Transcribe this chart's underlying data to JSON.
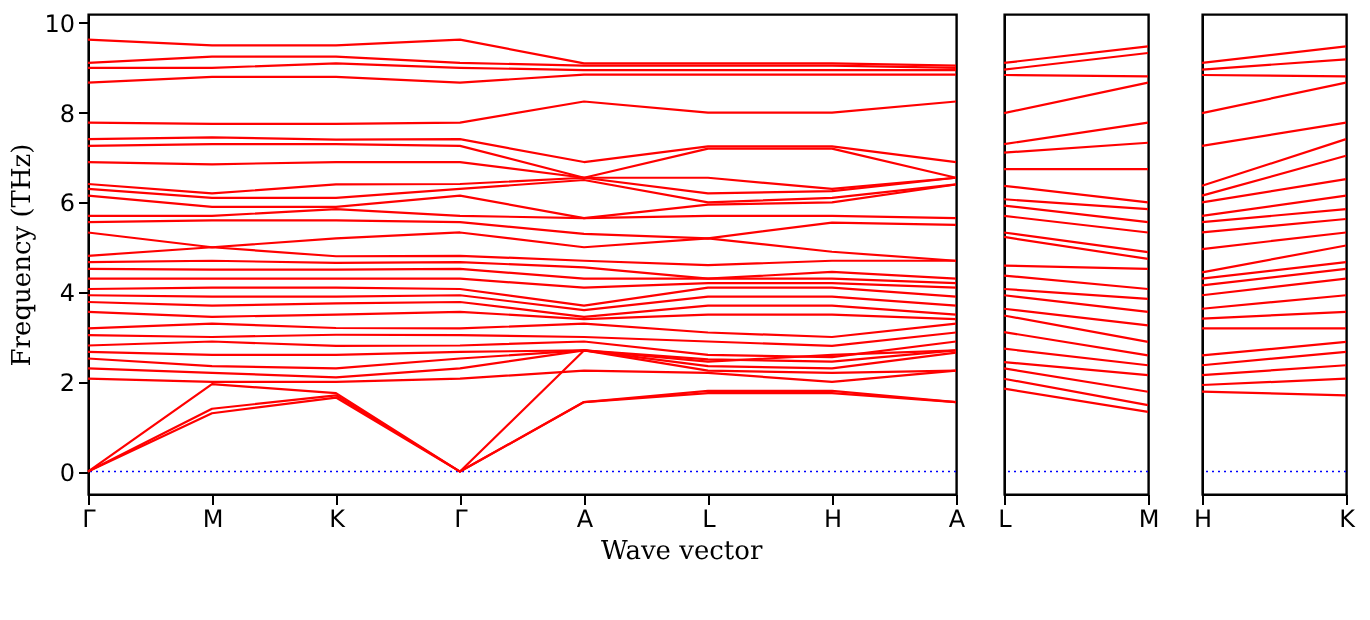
{
  "chart_data": [
    {
      "type": "line",
      "ylabel": "Frequency (THz)",
      "xlabel": "Wave vector",
      "categories": [
        "Γ",
        "M",
        "K",
        "Γ",
        "A",
        "L",
        "H",
        "A"
      ],
      "ylim": [
        -0.5,
        10.2
      ],
      "yticks": [
        0,
        2,
        4,
        6,
        8,
        10
      ],
      "ref_lines": [
        {
          "axis": "y",
          "value": 0,
          "color": "#0000ff",
          "line_style": "dotted"
        }
      ],
      "series": [
        {
          "color": "#ff0000",
          "values": [
            0,
            1.3,
            1.65,
            0,
            1.55,
            1.75,
            1.75,
            1.55
          ]
        },
        {
          "color": "#ff0000",
          "values": [
            0,
            1.4,
            1.7,
            0,
            1.55,
            1.8,
            1.8,
            1.55
          ]
        },
        {
          "color": "#ff0000",
          "values": [
            0,
            1.95,
            1.75,
            0,
            2.7,
            2.45,
            2.6,
            2.7
          ]
        },
        {
          "color": "#ff0000",
          "values": [
            9.63,
            9.5,
            9.5,
            9.63,
            9.1,
            9.1,
            9.1,
            9.05
          ]
        },
        {
          "color": "#ff0000",
          "values": [
            9.11,
            9.25,
            9.25,
            9.11,
            9.05,
            9.05,
            9.05,
            9.0
          ]
        },
        {
          "color": "#ff0000",
          "values": [
            9.0,
            9.0,
            9.1,
            9.0,
            8.95,
            8.95,
            8.95,
            8.95
          ]
        },
        {
          "color": "#ff0000",
          "values": [
            8.67,
            8.8,
            8.8,
            8.67,
            8.85,
            8.85,
            8.85,
            8.85
          ]
        },
        {
          "color": "#ff0000",
          "values": [
            7.78,
            7.75,
            7.75,
            7.78,
            8.25,
            8.0,
            8.0,
            8.25
          ]
        },
        {
          "color": "#ff0000",
          "values": [
            7.41,
            7.45,
            7.4,
            7.41,
            6.9,
            7.25,
            7.25,
            6.9
          ]
        },
        {
          "color": "#ff0000",
          "values": [
            7.26,
            7.3,
            7.3,
            7.26,
            6.55,
            7.2,
            7.2,
            6.55
          ]
        },
        {
          "color": "#ff0000",
          "values": [
            6.9,
            6.85,
            6.9,
            6.9,
            6.55,
            6.55,
            6.3,
            6.55
          ]
        },
        {
          "color": "#ff0000",
          "values": [
            6.41,
            6.2,
            6.4,
            6.41,
            6.55,
            6.2,
            6.25,
            6.55
          ]
        },
        {
          "color": "#ff0000",
          "values": [
            6.3,
            6.1,
            6.1,
            6.3,
            6.5,
            6.0,
            6.1,
            6.4
          ]
        },
        {
          "color": "#ff0000",
          "values": [
            6.15,
            5.9,
            5.9,
            6.15,
            5.65,
            5.95,
            6.0,
            6.4
          ]
        },
        {
          "color": "#ff0000",
          "values": [
            5.7,
            5.7,
            5.85,
            5.7,
            5.65,
            5.7,
            5.7,
            5.65
          ]
        },
        {
          "color": "#ff0000",
          "values": [
            5.56,
            5.6,
            5.6,
            5.56,
            5.3,
            5.2,
            5.55,
            5.5
          ]
        },
        {
          "color": "#ff0000",
          "values": [
            5.33,
            5.0,
            5.2,
            5.33,
            5.0,
            5.2,
            4.9,
            4.7
          ]
        },
        {
          "color": "#ff0000",
          "values": [
            4.81,
            5.0,
            4.8,
            4.81,
            4.7,
            4.6,
            4.7,
            4.7
          ]
        },
        {
          "color": "#ff0000",
          "values": [
            4.67,
            4.7,
            4.65,
            4.67,
            4.55,
            4.3,
            4.45,
            4.3
          ]
        },
        {
          "color": "#ff0000",
          "values": [
            4.52,
            4.5,
            4.5,
            4.52,
            4.3,
            4.3,
            4.3,
            4.2
          ]
        },
        {
          "color": "#ff0000",
          "values": [
            4.3,
            4.3,
            4.3,
            4.3,
            4.1,
            4.2,
            4.2,
            4.1
          ]
        },
        {
          "color": "#ff0000",
          "values": [
            4.07,
            4.1,
            4.1,
            4.07,
            3.7,
            4.1,
            4.1,
            3.9
          ]
        },
        {
          "color": "#ff0000",
          "values": [
            3.93,
            3.9,
            3.9,
            3.93,
            3.6,
            3.9,
            3.9,
            3.7
          ]
        },
        {
          "color": "#ff0000",
          "values": [
            3.78,
            3.7,
            3.75,
            3.78,
            3.45,
            3.7,
            3.7,
            3.5
          ]
        },
        {
          "color": "#ff0000",
          "values": [
            3.56,
            3.45,
            3.5,
            3.56,
            3.4,
            3.5,
            3.5,
            3.4
          ]
        },
        {
          "color": "#ff0000",
          "values": [
            3.19,
            3.3,
            3.2,
            3.19,
            3.3,
            3.1,
            3.0,
            3.3
          ]
        },
        {
          "color": "#ff0000",
          "values": [
            3.04,
            3.0,
            3.05,
            3.04,
            3.0,
            2.9,
            2.8,
            3.1
          ]
        },
        {
          "color": "#ff0000",
          "values": [
            2.81,
            2.9,
            2.8,
            2.81,
            2.9,
            2.6,
            2.55,
            2.9
          ]
        },
        {
          "color": "#ff0000",
          "values": [
            2.67,
            2.6,
            2.6,
            2.67,
            2.7,
            2.5,
            2.45,
            2.7
          ]
        },
        {
          "color": "#ff0000",
          "values": [
            2.52,
            2.35,
            2.3,
            2.52,
            2.7,
            2.35,
            2.3,
            2.65
          ]
        },
        {
          "color": "#ff0000",
          "values": [
            2.3,
            2.2,
            2.1,
            2.3,
            2.7,
            2.25,
            2.2,
            2.25
          ]
        },
        {
          "color": "#ff0000",
          "values": [
            2.07,
            2.0,
            2.0,
            2.07,
            2.25,
            2.2,
            2.0,
            2.25
          ]
        }
      ]
    },
    {
      "type": "line",
      "categories": [
        "L",
        "M"
      ],
      "ylim": [
        -0.5,
        10.2
      ],
      "tick_labels": "x",
      "ref_lines": [
        {
          "axis": "y",
          "value": 0,
          "color": "#0000ff",
          "line_style": "dotted"
        }
      ],
      "series": [
        {
          "color": "#ff0000",
          "values": [
            9.11,
            9.48
          ]
        },
        {
          "color": "#ff0000",
          "values": [
            8.96,
            9.33
          ]
        },
        {
          "color": "#ff0000",
          "values": [
            8.84,
            8.81
          ]
        },
        {
          "color": "#ff0000",
          "values": [
            7.99,
            8.67
          ]
        },
        {
          "color": "#ff0000",
          "values": [
            7.3,
            7.78
          ]
        },
        {
          "color": "#ff0000",
          "values": [
            7.11,
            7.33
          ]
        },
        {
          "color": "#ff0000",
          "values": [
            6.74,
            6.74
          ]
        },
        {
          "color": "#ff0000",
          "values": [
            6.37,
            6.0
          ]
        },
        {
          "color": "#ff0000",
          "values": [
            6.07,
            5.85
          ]
        },
        {
          "color": "#ff0000",
          "values": [
            5.93,
            5.56
          ]
        },
        {
          "color": "#ff0000",
          "values": [
            5.7,
            5.33
          ]
        },
        {
          "color": "#ff0000",
          "values": [
            5.33,
            4.89
          ]
        },
        {
          "color": "#ff0000",
          "values": [
            5.23,
            4.74
          ]
        },
        {
          "color": "#ff0000",
          "values": [
            4.59,
            4.52
          ]
        },
        {
          "color": "#ff0000",
          "values": [
            4.37,
            4.07
          ]
        },
        {
          "color": "#ff0000",
          "values": [
            4.07,
            3.85
          ]
        },
        {
          "color": "#ff0000",
          "values": [
            3.93,
            3.56
          ]
        },
        {
          "color": "#ff0000",
          "values": [
            3.63,
            3.26
          ]
        },
        {
          "color": "#ff0000",
          "values": [
            3.48,
            2.89
          ]
        },
        {
          "color": "#ff0000",
          "values": [
            3.11,
            2.59
          ]
        },
        {
          "color": "#ff0000",
          "values": [
            2.74,
            2.37
          ]
        },
        {
          "color": "#ff0000",
          "values": [
            2.44,
            2.15
          ]
        },
        {
          "color": "#ff0000",
          "values": [
            2.3,
            1.78
          ]
        },
        {
          "color": "#ff0000",
          "values": [
            2.07,
            1.48
          ]
        },
        {
          "color": "#ff0000",
          "values": [
            1.85,
            1.33
          ]
        }
      ]
    },
    {
      "type": "line",
      "categories": [
        "H",
        "K"
      ],
      "ylim": [
        -0.5,
        10.2
      ],
      "tick_labels": "x",
      "ref_lines": [
        {
          "axis": "y",
          "value": 0,
          "color": "#0000ff",
          "line_style": "dotted"
        }
      ],
      "series": [
        {
          "color": "#ff0000",
          "values": [
            9.11,
            9.48
          ]
        },
        {
          "color": "#ff0000",
          "values": [
            8.96,
            9.19
          ]
        },
        {
          "color": "#ff0000",
          "values": [
            8.84,
            8.81
          ]
        },
        {
          "color": "#ff0000",
          "values": [
            7.99,
            8.67
          ]
        },
        {
          "color": "#ff0000",
          "values": [
            7.26,
            7.78
          ]
        },
        {
          "color": "#ff0000",
          "values": [
            6.37,
            7.41
          ]
        },
        {
          "color": "#ff0000",
          "values": [
            6.15,
            7.04
          ]
        },
        {
          "color": "#ff0000",
          "values": [
            6.0,
            6.52
          ]
        },
        {
          "color": "#ff0000",
          "values": [
            5.7,
            6.15
          ]
        },
        {
          "color": "#ff0000",
          "values": [
            5.56,
            5.85
          ]
        },
        {
          "color": "#ff0000",
          "values": [
            5.33,
            5.63
          ]
        },
        {
          "color": "#ff0000",
          "values": [
            4.96,
            5.33
          ]
        },
        {
          "color": "#ff0000",
          "values": [
            4.44,
            5.04
          ]
        },
        {
          "color": "#ff0000",
          "values": [
            4.3,
            4.67
          ]
        },
        {
          "color": "#ff0000",
          "values": [
            4.15,
            4.52
          ]
        },
        {
          "color": "#ff0000",
          "values": [
            3.93,
            4.3
          ]
        },
        {
          "color": "#ff0000",
          "values": [
            3.63,
            3.93
          ]
        },
        {
          "color": "#ff0000",
          "values": [
            3.41,
            3.56
          ]
        },
        {
          "color": "#ff0000",
          "values": [
            3.19,
            3.19
          ]
        },
        {
          "color": "#ff0000",
          "values": [
            2.59,
            2.89
          ]
        },
        {
          "color": "#ff0000",
          "values": [
            2.37,
            2.67
          ]
        },
        {
          "color": "#ff0000",
          "values": [
            2.15,
            2.37
          ]
        },
        {
          "color": "#ff0000",
          "values": [
            1.93,
            2.07
          ]
        },
        {
          "color": "#ff0000",
          "values": [
            1.78,
            1.7
          ]
        }
      ]
    }
  ]
}
